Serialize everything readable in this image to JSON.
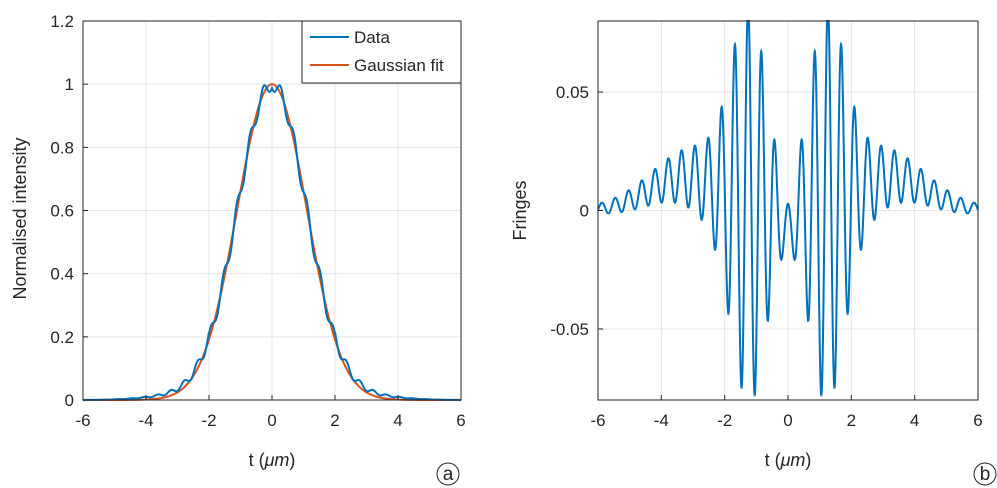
{
  "colors": {
    "data_series": "#0072BD",
    "fit_series": "#D95319",
    "grid": "#e4e4e4",
    "axes": "#262626"
  },
  "chart_data": [
    {
      "type": "line",
      "panel": "a",
      "panel_tag": "a",
      "xlabel": "t (",
      "xlabel_unit": "μm",
      "xlabel_close": ")",
      "ylabel": "Normalised intensity",
      "xlim": [
        -6,
        6
      ],
      "ylim": [
        0,
        1.2
      ],
      "xticks": [
        -6,
        -4,
        -2,
        0,
        2,
        4,
        6
      ],
      "yticks": [
        0,
        0.2,
        0.4,
        0.6,
        0.8,
        1,
        1.2
      ],
      "xtick_labels": [
        "-6",
        "-4",
        "-2",
        "0",
        "2",
        "4",
        "6"
      ],
      "ytick_labels": [
        "0",
        "0.2",
        "0.4",
        "0.6",
        "0.8",
        "1",
        "1.2"
      ],
      "grid": true,
      "legend": {
        "placement": "top-right",
        "entries": [
          "Data",
          "Gaussian fit"
        ]
      },
      "series": [
        {
          "name": "Data",
          "color": "#0072BD",
          "model": "gaussian with superposed oscillation",
          "sigma_um": 1.1,
          "ripple_amplitude": 0.05,
          "ripple_period_um": 0.42,
          "tail_baseline": 0.012
        },
        {
          "name": "Gaussian fit",
          "color": "#D95319",
          "model": "gaussian",
          "amplitude": 1.0,
          "center_um": 0,
          "sigma_um": 1.1
        }
      ]
    },
    {
      "type": "line",
      "panel": "b",
      "panel_tag": "b",
      "xlabel": "t (",
      "xlabel_unit": "μm",
      "xlabel_close": ")",
      "ylabel": "Fringes",
      "xlim": [
        -6,
        6
      ],
      "ylim": [
        -0.08,
        0.08
      ],
      "xticks": [
        -6,
        -4,
        -2,
        0,
        2,
        4,
        6
      ],
      "yticks": [
        -0.05,
        0,
        0.05
      ],
      "xtick_labels": [
        "-6",
        "-4",
        "-2",
        "0",
        "2",
        "4",
        "6"
      ],
      "ytick_labels": [
        "-0.05",
        "0",
        "0.05"
      ],
      "grid": true,
      "series": [
        {
          "name": "",
          "color": "#0072BD",
          "model": "double-lobed fringe envelope",
          "period_um": 0.42,
          "peak_amplitude": 0.072,
          "lobe_centers_um": [
            -1.2,
            1.2
          ],
          "lobe_width_um": 0.55,
          "tail_amplitude": 0.026,
          "tail_width_um": 2.7,
          "min_at_center": -0.01
        }
      ]
    }
  ]
}
